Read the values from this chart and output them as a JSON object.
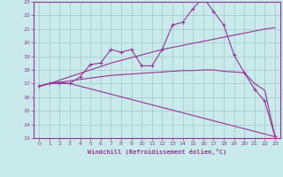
{
  "xlabel": "Windchill (Refroidissement éolien,°C)",
  "xlim": [
    -0.5,
    23.5
  ],
  "ylim": [
    13,
    23
  ],
  "xticks": [
    0,
    1,
    2,
    3,
    4,
    5,
    6,
    7,
    8,
    9,
    10,
    11,
    12,
    13,
    14,
    15,
    16,
    17,
    18,
    19,
    20,
    21,
    22,
    23
  ],
  "yticks": [
    13,
    14,
    15,
    16,
    17,
    18,
    19,
    20,
    21,
    22,
    23
  ],
  "bg_color": "#c8eaea",
  "grid_color": "#aacccc",
  "line_color": "#993399",
  "curve1_x": [
    0,
    1,
    2,
    3,
    4,
    5,
    6,
    7,
    8,
    9,
    10,
    11,
    12,
    13,
    14,
    15,
    16,
    17,
    18,
    19,
    20,
    21,
    22,
    23
  ],
  "curve1_y": [
    16.8,
    17.0,
    17.0,
    17.0,
    17.5,
    18.4,
    18.5,
    19.5,
    19.3,
    19.5,
    18.3,
    18.3,
    19.5,
    21.3,
    21.5,
    22.5,
    23.3,
    22.3,
    21.3,
    19.1,
    17.8,
    16.6,
    15.7,
    13.1
  ],
  "curve2_x": [
    0,
    1,
    2,
    3,
    4,
    5,
    6,
    7,
    8,
    9,
    10,
    11,
    12,
    13,
    14,
    15,
    16,
    17,
    18,
    19,
    20,
    21,
    22,
    23
  ],
  "curve2_y": [
    16.8,
    17.0,
    17.25,
    17.5,
    17.75,
    18.0,
    18.25,
    18.5,
    18.7,
    18.9,
    19.1,
    19.3,
    19.5,
    19.65,
    19.8,
    19.95,
    20.1,
    20.25,
    20.4,
    20.55,
    20.7,
    20.85,
    21.0,
    21.1
  ],
  "curve3_x": [
    0,
    1,
    2,
    3,
    4,
    5,
    6,
    7,
    8,
    9,
    10,
    11,
    12,
    13,
    14,
    15,
    16,
    17,
    18,
    19,
    20,
    21,
    22,
    23
  ],
  "curve3_y": [
    16.8,
    17.0,
    17.1,
    17.2,
    17.3,
    17.4,
    17.5,
    17.6,
    17.65,
    17.7,
    17.75,
    17.8,
    17.85,
    17.9,
    17.95,
    17.95,
    18.0,
    18.0,
    17.9,
    17.85,
    17.8,
    17.0,
    16.5,
    13.1
  ],
  "curve4_x": [
    0,
    1,
    2,
    3,
    23
  ],
  "curve4_y": [
    16.8,
    17.0,
    17.1,
    17.0,
    13.1
  ]
}
